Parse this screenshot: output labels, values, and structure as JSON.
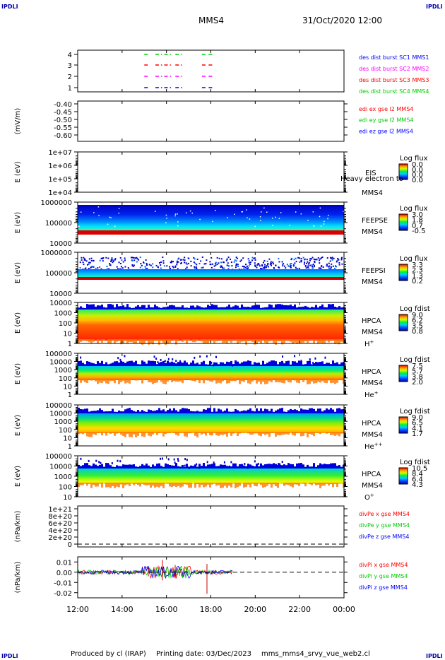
{
  "corner_labels": [
    "IPDLI",
    "IPDLI",
    "IPDLI",
    "IPDLI"
  ],
  "header": {
    "spacecraft": "MMS4",
    "datetime": "31/Oct/2020 12:00"
  },
  "footer": {
    "produced_by": "Produced by cl (IRAP)",
    "printing_date": "Printing date: 03/Dec/2023",
    "filename": "mms_mms4_srvy_vue_web2.cl"
  },
  "x_axis": {
    "ticks": [
      "12:00",
      "14:00",
      "16:00",
      "18:00",
      "20:00",
      "22:00",
      "00:00"
    ]
  },
  "colors": {
    "red": "#ff0000",
    "green": "#00cc00",
    "blue": "#0000ff",
    "magenta": "#ff00ff"
  },
  "chart_data": [
    {
      "type": "line",
      "id": "burst",
      "y_ticks": [
        "4",
        "3",
        "2",
        "1"
      ],
      "legend": [
        {
          "label": "des dist burst SC1 MMS1",
          "color": "#0000ff"
        },
        {
          "label": "des dist burst SC2 MMS2",
          "color": "#ff00ff"
        },
        {
          "label": "des dist burst SC3 MMS3",
          "color": "#ff0000"
        },
        {
          "label": "des dist burst SC4 MMS4",
          "color": "#00cc00"
        }
      ],
      "segments_hours": [
        [
          15.0,
          15.2
        ],
        [
          15.5,
          15.8
        ],
        [
          15.9,
          16.2
        ],
        [
          16.4,
          16.7
        ],
        [
          17.6,
          17.8
        ],
        [
          17.9,
          18.1
        ]
      ]
    },
    {
      "type": "line",
      "id": "edi",
      "ylabel": "(mV/m)",
      "y_ticks": [
        "-0.40",
        "-0.45",
        "-0.50",
        "-0.55",
        "-0.60"
      ],
      "legend": [
        {
          "label": "edi ex gse l2 MMS4",
          "color": "#ff0000"
        },
        {
          "label": "edi ey gse l2 MMS4",
          "color": "#00cc00"
        },
        {
          "label": "edi ez gse l2 MMS4",
          "color": "#0000ff"
        }
      ]
    },
    {
      "type": "heatmap",
      "id": "eis",
      "ylabel": "E (eV)",
      "y_ticks": [
        "1e+07",
        "1e+06",
        "1e+05",
        "1e+04"
      ],
      "instrument": "EIS",
      "species": "Heavy electron to",
      "spacecraft": "MMS4",
      "colorbar_title": "Log flux",
      "colorbar_ticks": [
        "0.0",
        "0.0",
        "0.0",
        "0.0"
      ]
    },
    {
      "type": "heatmap",
      "id": "feepse",
      "ylabel": "E (eV)",
      "y_ticks": [
        "1000000",
        "100000",
        "10000"
      ],
      "instrument": "FEEPSE",
      "spacecraft": "MMS4",
      "colorbar_title": "Log flux",
      "colorbar_ticks": [
        "3.0",
        "1.8",
        "0.7",
        "-0.5"
      ]
    },
    {
      "type": "heatmap",
      "id": "feepsi",
      "ylabel": "E (eV)",
      "y_ticks": [
        "1000000",
        "100000",
        "10000"
      ],
      "instrument": "FEEPSI",
      "spacecraft": "MMS4",
      "colorbar_title": "Log flux",
      "colorbar_ticks": [
        "3.3",
        "2.3",
        "1.3",
        "0.2"
      ]
    },
    {
      "type": "heatmap",
      "id": "hpca_h",
      "ylabel": "E (eV)",
      "y_ticks": [
        "10000",
        "1000",
        "100",
        "10",
        "1"
      ],
      "instrument": "HPCA",
      "spacecraft": "MMS4",
      "species_base": "H",
      "species_sup": "+",
      "colorbar_title": "Log fdist",
      "colorbar_ticks": [
        "9.0",
        "6.2",
        "3.5",
        "0.8"
      ]
    },
    {
      "type": "heatmap",
      "id": "hpca_he",
      "ylabel": "E (eV)",
      "y_ticks": [
        "100000",
        "10000",
        "1000",
        "100",
        "10",
        "1"
      ],
      "instrument": "HPCA",
      "spacecraft": "MMS4",
      "species_base": "He",
      "species_sup": "+",
      "colorbar_title": "Log fdist",
      "colorbar_ticks": [
        "7.5",
        "5.7",
        "3.8",
        "2.0"
      ]
    },
    {
      "type": "heatmap",
      "id": "hpca_hepp",
      "ylabel": "E (eV)",
      "y_ticks": [
        "100000",
        "10000",
        "1000",
        "100",
        "10",
        "1"
      ],
      "instrument": "HPCA",
      "spacecraft": "MMS4",
      "species_base": "He",
      "species_sup": "++",
      "colorbar_title": "Log fdist",
      "colorbar_ticks": [
        "9.0",
        "6.5",
        "4.1",
        "1.7"
      ]
    },
    {
      "type": "heatmap",
      "id": "hpca_o",
      "ylabel": "E (eV)",
      "y_ticks": [
        "100000",
        "10000",
        "1000",
        "100",
        "10"
      ],
      "instrument": "HPCA",
      "spacecraft": "MMS4",
      "species_base": "O",
      "species_sup": "+",
      "colorbar_title": "Log fdist",
      "colorbar_ticks": [
        "10.5",
        "8.4",
        "6.4",
        "4.3"
      ]
    },
    {
      "type": "line",
      "id": "divpe",
      "ylabel": "(nPa/km)",
      "y_ticks": [
        "1e+21",
        "8e+20",
        "6e+20",
        "4e+20",
        "2e+20",
        "0"
      ],
      "legend": [
        {
          "label": "divPe x gse MMS4",
          "color": "#ff0000"
        },
        {
          "label": "divPe y gse MMS4",
          "color": "#00cc00"
        },
        {
          "label": "divPe z gse MMS4",
          "color": "#0000ff"
        }
      ]
    },
    {
      "type": "line",
      "id": "divpi",
      "ylabel": "(nPa/km)",
      "y_ticks": [
        "0.01",
        "0.00",
        "-0.01",
        "-0.02"
      ],
      "ylim": [
        -0.025,
        0.015
      ],
      "legend": [
        {
          "label": "divPi x gse MMS4",
          "color": "#ff0000"
        },
        {
          "label": "divPi y gse MMS4",
          "color": "#00cc00"
        },
        {
          "label": "divPi z gse MMS4",
          "color": "#0000ff"
        }
      ],
      "data_end_hour": 19.0
    }
  ]
}
